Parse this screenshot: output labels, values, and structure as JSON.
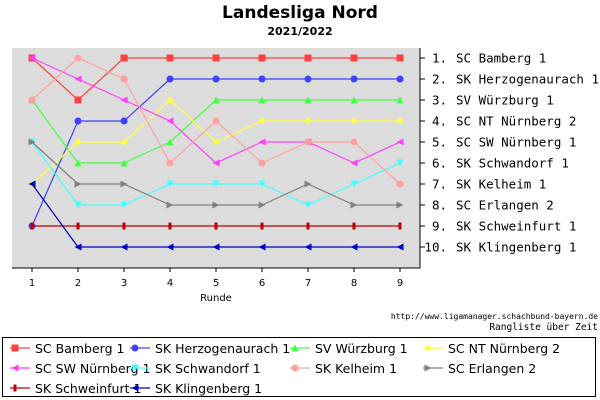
{
  "header": {
    "title": "Landesliga Nord",
    "subtitle": "2021/2022"
  },
  "footer": {
    "url": "http://www.ligamanager.schachbund-bayern.de",
    "caption": "Rangliste über Zeit"
  },
  "chart_data": {
    "type": "line",
    "title": "Landesliga Nord",
    "subtitle": "2021/2022",
    "xlabel": "Runde",
    "ylabel": "",
    "x": [
      1,
      2,
      3,
      4,
      5,
      6,
      7,
      8,
      9
    ],
    "xlim": [
      1,
      9
    ],
    "ylim": [
      1,
      10
    ],
    "y_inverted": true,
    "grid": false,
    "legend_position": "bottom",
    "rank_labels": [
      "1. SC Bamberg 1",
      "2. SK Herzogenaurach 1",
      "3. SV Würzburg 1",
      "4. SC NT Nürnberg 2",
      "5. SC SW Nürnberg 1",
      "6. SK Schwandorf 1",
      "7. SK Kelheim 1",
      "8. SC Erlangen 2",
      "9. SK Schweinfurt 1",
      "10. SK Klingenberg 1"
    ],
    "series": [
      {
        "name": "SC Bamberg 1",
        "color": "#ff4040",
        "marker": "square",
        "values": [
          1,
          3,
          1,
          1,
          1,
          1,
          1,
          1,
          1
        ]
      },
      {
        "name": "SK Herzogenaurach 1",
        "color": "#4040ff",
        "marker": "circle",
        "values": [
          9,
          4,
          4,
          2,
          2,
          2,
          2,
          2,
          2
        ]
      },
      {
        "name": "SV Würzburg 1",
        "color": "#40ff40",
        "marker": "triangle-up",
        "values": [
          3,
          6,
          6,
          5,
          3,
          3,
          3,
          3,
          3
        ]
      },
      {
        "name": "SC NT Nürnberg 2",
        "color": "#ffff40",
        "marker": "diamond",
        "values": [
          7,
          5,
          5,
          3,
          5,
          4,
          4,
          4,
          4
        ]
      },
      {
        "name": "SC SW Nürnberg 1",
        "color": "#ff40ff",
        "marker": "triangle-left",
        "values": [
          1,
          2,
          3,
          4,
          6,
          5,
          5,
          6,
          5
        ]
      },
      {
        "name": "SK Schwandorf 1",
        "color": "#40ffff",
        "marker": "triangle-down",
        "values": [
          5,
          8,
          8,
          7,
          7,
          7,
          8,
          7,
          6
        ]
      },
      {
        "name": "SK Kelheim 1",
        "color": "#ffa0a0",
        "marker": "circle",
        "values": [
          3,
          1,
          2,
          6,
          4,
          6,
          5,
          5,
          7
        ]
      },
      {
        "name": "SC Erlangen 2",
        "color": "#808080",
        "marker": "triangle-right",
        "values": [
          5,
          7,
          7,
          8,
          8,
          8,
          7,
          8,
          8
        ]
      },
      {
        "name": "SK Schweinfurt 1",
        "color": "#c00000",
        "marker": "bar",
        "values": [
          9,
          9,
          9,
          9,
          9,
          9,
          9,
          9,
          9
        ]
      },
      {
        "name": "SK Klingenberg 1",
        "color": "#0000c0",
        "marker": "triangle-left",
        "values": [
          7,
          10,
          10,
          10,
          10,
          10,
          10,
          10,
          10
        ]
      }
    ]
  }
}
